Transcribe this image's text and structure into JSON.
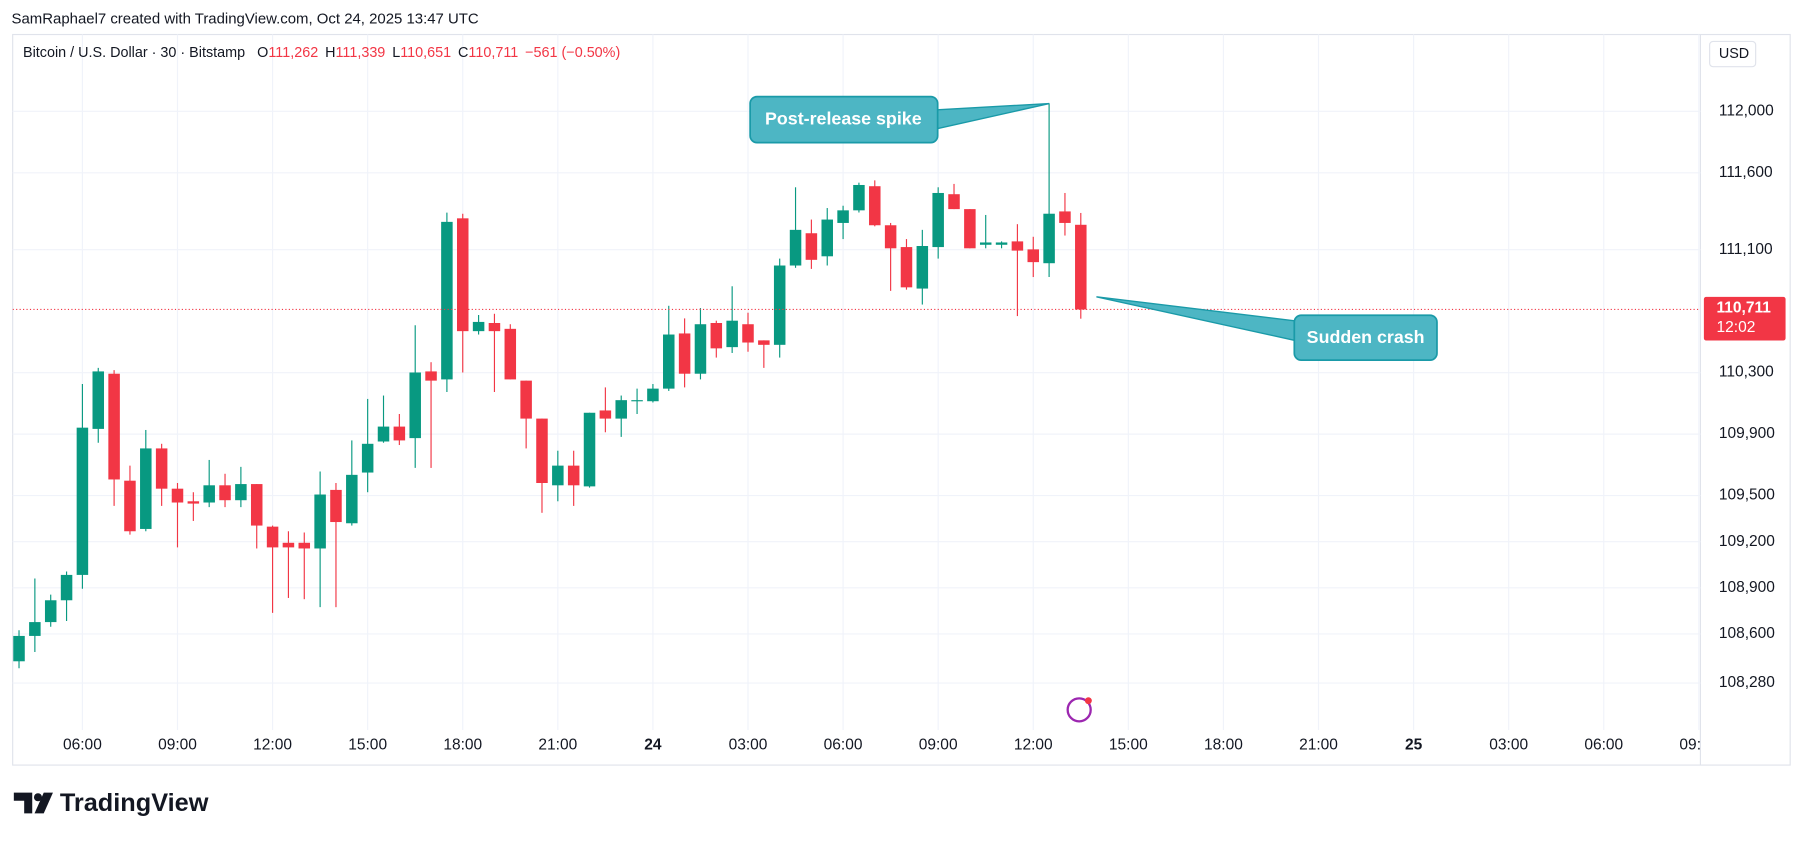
{
  "header": {
    "attribution": "SamRaphael7 created with TradingView.com, Oct 24, 2025 13:47 UTC"
  },
  "chart_data": {
    "type": "candlestick",
    "symbol": "Bitcoin / U.S. Dollar · 30 · Bitstamp",
    "legend_ohlc": [
      {
        "key": "O",
        "value": 111262,
        "label": "111,262"
      },
      {
        "key": "H",
        "value": 111339,
        "label": "111,339"
      },
      {
        "key": "L",
        "value": 110651,
        "label": "110,651"
      },
      {
        "key": "C",
        "value": 110711,
        "label": "110,711"
      }
    ],
    "change_label": "−561 (−0.50%)",
    "currency": "USD",
    "up_color": "#089981",
    "down_color": "#f23645",
    "grid": true,
    "x": [
      4,
      4.5,
      5,
      5.5,
      6,
      6.5,
      7,
      7.5,
      8,
      8.5,
      9,
      9.5,
      10,
      10.5,
      11,
      11.5,
      12,
      12.5,
      13,
      13.5,
      14,
      14.5,
      15,
      15.5,
      16,
      16.5,
      17,
      17.5,
      18,
      18.5,
      19,
      19.5,
      20,
      20.5,
      21,
      21.5,
      22,
      22.5,
      23,
      23.5,
      24,
      24.5,
      25,
      25.5,
      26,
      26.5,
      27,
      27.5,
      28,
      28.5,
      29,
      29.5,
      30,
      30.5,
      31,
      31.5,
      32,
      32.5,
      33,
      33.5,
      34,
      34.5,
      35,
      35.5,
      36,
      36.5,
      37,
      37.5
    ],
    "open": [
      108422,
      108587,
      108677,
      108819,
      108984,
      109934,
      110293,
      109597,
      109283,
      109807,
      109545,
      109463,
      109455,
      109567,
      109470,
      109575,
      109298,
      109193,
      109193,
      109156,
      109537,
      109320,
      109650,
      109852,
      109949,
      109874,
      110308,
      110256,
      111304,
      110570,
      110623,
      110585,
      110248,
      110001,
      109567,
      109695,
      109560,
      110054,
      110001,
      110114,
      110114,
      110196,
      110555,
      110293,
      110623,
      110466,
      110615,
      110510,
      110481,
      110997,
      111207,
      111057,
      111274,
      111356,
      111513,
      111259,
      111117,
      110847,
      111117,
      111461,
      111364,
      111132,
      111132,
      111154,
      111102,
      111012,
      111349,
      111262
    ],
    "high": [
      108624,
      108961,
      108856,
      109006,
      110226,
      110331,
      110316,
      109695,
      109927,
      109837,
      109582,
      109522,
      109732,
      109642,
      109687,
      109575,
      109305,
      109268,
      109260,
      109657,
      109582,
      109859,
      110129,
      110151,
      110031,
      110608,
      110368,
      111341,
      111334,
      110675,
      110683,
      110615,
      110248,
      110001,
      109792,
      109792,
      110039,
      110204,
      110151,
      110196,
      110226,
      110735,
      110653,
      110720,
      110638,
      110862,
      110690,
      110510,
      111042,
      111506,
      111296,
      111371,
      111386,
      111536,
      111551,
      111274,
      111169,
      111229,
      111506,
      111528,
      111364,
      111326,
      111154,
      111266,
      111184,
      112052,
      111469,
      111339
    ],
    "low": [
      108377,
      108482,
      108647,
      108684,
      108894,
      109844,
      109433,
      109246,
      109268,
      109433,
      109163,
      109335,
      109425,
      109425,
      109425,
      109156,
      108737,
      108834,
      108826,
      108774,
      108774,
      109305,
      109522,
      109844,
      109829,
      109680,
      109680,
      110174,
      110301,
      110548,
      110174,
      110256,
      109807,
      109388,
      109463,
      109433,
      109552,
      109912,
      109882,
      110031,
      110106,
      110181,
      110204,
      110256,
      110398,
      110428,
      110436,
      110331,
      110398,
      110982,
      110975,
      110997,
      111169,
      111342,
      111252,
      110832,
      110840,
      110743,
      111042,
      111364,
      111109,
      111109,
      111109,
      110668,
      110922,
      110922,
      111192,
      110651
    ],
    "close": [
      108587,
      108677,
      108819,
      108984,
      109942,
      110308,
      109605,
      109268,
      109807,
      109545,
      109455,
      109448,
      109567,
      109470,
      109575,
      109305,
      109163,
      109163,
      109156,
      109507,
      109328,
      109635,
      109837,
      109949,
      109859,
      110301,
      110248,
      111281,
      110570,
      110630,
      110570,
      110256,
      110001,
      109582,
      109695,
      109567,
      110039,
      110001,
      110121,
      110121,
      110196,
      110548,
      110293,
      110615,
      110458,
      110638,
      110496,
      110481,
      110997,
      111229,
      111034,
      111296,
      111356,
      111521,
      111259,
      111109,
      110855,
      111124,
      111469,
      111364,
      111109,
      111147,
      111147,
      111094,
      111019,
      111334,
      111274,
      110711
    ],
    "xlim": [
      3.8,
      57.05
    ],
    "xticks": [
      {
        "value": 6,
        "label": "06:00"
      },
      {
        "value": 9,
        "label": "09:00"
      },
      {
        "value": 12,
        "label": "12:00"
      },
      {
        "value": 15,
        "label": "15:00"
      },
      {
        "value": 18,
        "label": "18:00"
      },
      {
        "value": 21,
        "label": "21:00"
      },
      24,
      {
        "value": 27,
        "label": "03:00"
      },
      {
        "value": 30,
        "label": "06:00"
      },
      {
        "value": 33,
        "label": "09:00"
      },
      {
        "value": 36,
        "label": "12:00"
      },
      {
        "value": 39,
        "label": "15:00"
      },
      {
        "value": 42,
        "label": "18:00"
      },
      {
        "value": 45,
        "label": "21:00"
      },
      {
        "value": 48,
        "label": "25"
      },
      {
        "value": 51,
        "label": "03:00"
      },
      {
        "value": 54,
        "label": "06:00"
      },
      {
        "value": 57,
        "label": "09:00"
      }
    ],
    "ylim": [
      107990,
      112500
    ],
    "yticks": [
      {
        "value": 108280,
        "label": "108,280"
      },
      {
        "value": 108600,
        "label": "108,600"
      },
      {
        "value": 108900,
        "label": "108,900"
      },
      {
        "value": 109200,
        "label": "109,200"
      },
      {
        "value": 109500,
        "label": "109,500"
      },
      {
        "value": 109900,
        "label": "109,900"
      },
      {
        "value": 110300,
        "label": "110,300"
      },
      {
        "value": 111100,
        "label": "111,100"
      },
      {
        "value": 111600,
        "label": "111,600"
      },
      {
        "value": 112000,
        "label": "112,000"
      }
    ],
    "last_price": {
      "value": 110711,
      "label": "110,711"
    },
    "countdown": "12:02",
    "annotations": [
      "Post-release spike",
      "Sudden crash"
    ]
  },
  "footer": {
    "logo": "TradingView"
  }
}
